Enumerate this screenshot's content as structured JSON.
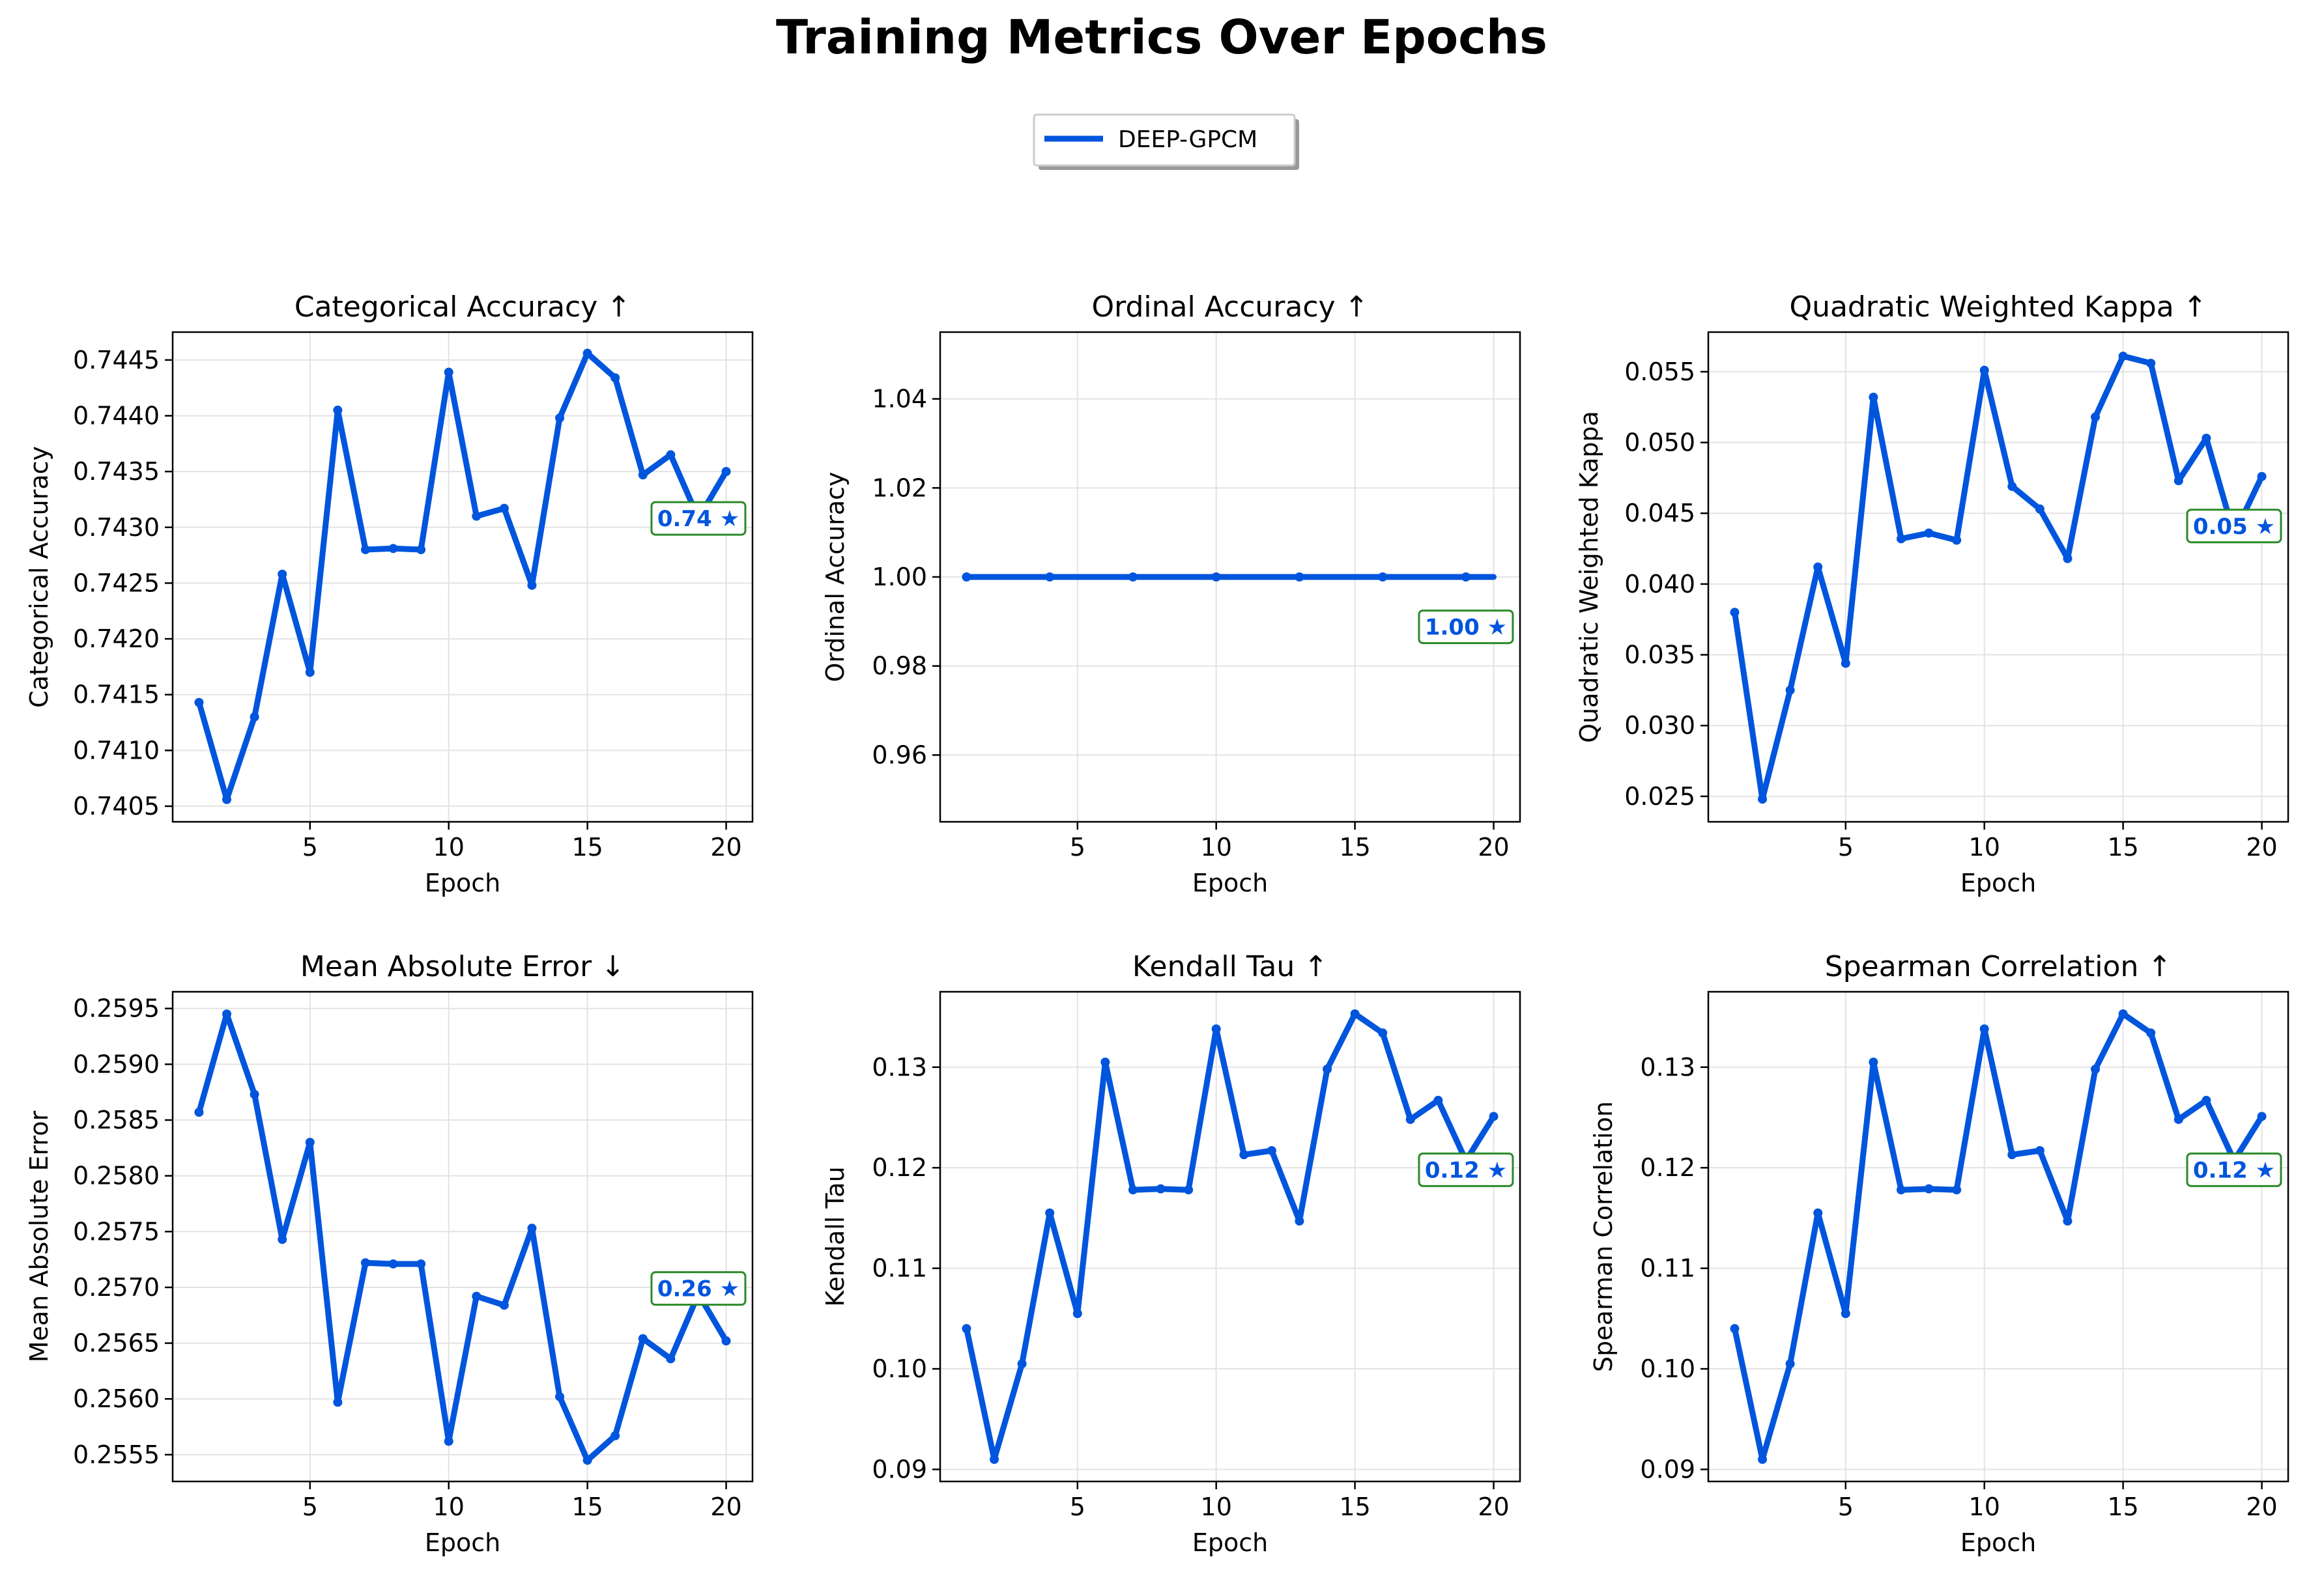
{
  "figure": {
    "title": "Training Metrics Over Epochs",
    "legend": {
      "entries": [
        {
          "label": "DEEP-GPCM",
          "color": "#0055dd"
        }
      ],
      "placement": "top-center"
    },
    "colors": {
      "series": "#0055dd",
      "best_box_edge": "#2a8a2a",
      "grid": "#e3e3e3"
    }
  },
  "chart_data": [
    {
      "type": "line",
      "title": "Categorical Accuracy ↑",
      "xlabel": "Epoch",
      "ylabel": "Categorical Accuracy",
      "x": [
        1,
        2,
        3,
        4,
        5,
        6,
        7,
        8,
        9,
        10,
        11,
        12,
        13,
        14,
        15,
        16,
        17,
        18,
        19,
        20
      ],
      "series": [
        {
          "name": "DEEP-GPCM",
          "values": [
            0.74143,
            0.74056,
            0.7413,
            0.74258,
            0.7417,
            0.74405,
            0.7428,
            0.74281,
            0.7428,
            0.74439,
            0.7431,
            0.74317,
            0.74248,
            0.74398,
            0.74456,
            0.74434,
            0.74347,
            0.74365,
            0.74308,
            0.7435
          ]
        }
      ],
      "xlim": [
        0.05,
        20.95
      ],
      "ylim": [
        0.74036,
        0.74475
      ],
      "xticks": [
        5,
        10,
        15,
        20
      ],
      "xtick_labels": [
        "5",
        "10",
        "15",
        "20"
      ],
      "yticks": [
        0.7405,
        0.741,
        0.7415,
        0.742,
        0.7425,
        0.743,
        0.7435,
        0.744,
        0.7445
      ],
      "ytick_labels": [
        "0.7405",
        "0.7410",
        "0.7415",
        "0.7420",
        "0.7425",
        "0.7430",
        "0.7435",
        "0.7440",
        "0.7445"
      ],
      "grid": true,
      "best": {
        "label": "0.74 ★",
        "x": 19.0,
        "y": 0.74308
      }
    },
    {
      "type": "line",
      "title": "Ordinal Accuracy ↑",
      "xlabel": "Epoch",
      "ylabel": "Ordinal Accuracy",
      "x": [
        1,
        2,
        3,
        4,
        5,
        6,
        7,
        8,
        9,
        10,
        11,
        12,
        13,
        14,
        15,
        16,
        17,
        18,
        19,
        20
      ],
      "series": [
        {
          "name": "DEEP-GPCM",
          "values": [
            1,
            1,
            1,
            1,
            1,
            1,
            1,
            1,
            1,
            1,
            1,
            1,
            1,
            1,
            1,
            1,
            1,
            1,
            1,
            1
          ]
        }
      ],
      "markers_at": [
        1,
        4,
        7,
        10,
        13,
        16,
        19
      ],
      "xlim": [
        0.05,
        20.95
      ],
      "ylim": [
        0.945,
        1.055
      ],
      "xticks": [
        5,
        10,
        15,
        20
      ],
      "xtick_labels": [
        "5",
        "10",
        "15",
        "20"
      ],
      "yticks": [
        0.96,
        0.98,
        1.0,
        1.02,
        1.04
      ],
      "ytick_labels": [
        "0.96",
        "0.98",
        "1.00",
        "1.02",
        "1.04"
      ],
      "grid": true,
      "best": {
        "label": "1.00 ★",
        "x": 19.0,
        "y": 0.9888
      }
    },
    {
      "type": "line",
      "title": "Quadratic Weighted Kappa ↑",
      "xlabel": "Epoch",
      "ylabel": "Quadratic Weighted Kappa",
      "x": [
        1,
        2,
        3,
        4,
        5,
        6,
        7,
        8,
        9,
        10,
        11,
        12,
        13,
        14,
        15,
        16,
        17,
        18,
        19,
        20
      ],
      "series": [
        {
          "name": "DEEP-GPCM",
          "values": [
            0.038,
            0.0248,
            0.0325,
            0.0412,
            0.0344,
            0.0532,
            0.0432,
            0.0436,
            0.0431,
            0.0551,
            0.0469,
            0.0453,
            0.0418,
            0.0518,
            0.0561,
            0.0556,
            0.0473,
            0.0503,
            0.0435,
            0.0476
          ]
        }
      ],
      "xlim": [
        0.05,
        20.95
      ],
      "ylim": [
        0.0232,
        0.0578
      ],
      "xticks": [
        5,
        10,
        15,
        20
      ],
      "xtick_labels": [
        "5",
        "10",
        "15",
        "20"
      ],
      "yticks": [
        0.025,
        0.03,
        0.035,
        0.04,
        0.045,
        0.05,
        0.055
      ],
      "ytick_labels": [
        "0.025",
        "0.030",
        "0.035",
        "0.040",
        "0.045",
        "0.050",
        "0.055"
      ],
      "grid": true,
      "best": {
        "label": "0.05 ★",
        "x": 19.0,
        "y": 0.0441
      }
    },
    {
      "type": "line",
      "title": "Mean Absolute Error ↓",
      "xlabel": "Epoch",
      "ylabel": "Mean Absolute Error",
      "x": [
        1,
        2,
        3,
        4,
        5,
        6,
        7,
        8,
        9,
        10,
        11,
        12,
        13,
        14,
        15,
        16,
        17,
        18,
        19,
        20
      ],
      "series": [
        {
          "name": "DEEP-GPCM",
          "values": [
            0.25857,
            0.25945,
            0.25873,
            0.25743,
            0.2583,
            0.25597,
            0.25722,
            0.25721,
            0.25721,
            0.25562,
            0.25692,
            0.25684,
            0.25753,
            0.25602,
            0.25545,
            0.25567,
            0.25654,
            0.25636,
            0.25694,
            0.25652
          ]
        }
      ],
      "xlim": [
        0.05,
        20.95
      ],
      "ylim": [
        0.25526,
        0.25965
      ],
      "xticks": [
        5,
        10,
        15,
        20
      ],
      "xtick_labels": [
        "5",
        "10",
        "15",
        "20"
      ],
      "yticks": [
        0.2555,
        0.256,
        0.2565,
        0.257,
        0.2575,
        0.258,
        0.2585,
        0.259,
        0.2595
      ],
      "ytick_labels": [
        "0.2555",
        "0.2560",
        "0.2565",
        "0.2570",
        "0.2575",
        "0.2580",
        "0.2585",
        "0.2590",
        "0.2595"
      ],
      "grid": true,
      "best": {
        "label": "0.26 ★",
        "x": 19.0,
        "y": 0.25699
      }
    },
    {
      "type": "line",
      "title": "Kendall Tau ↑",
      "xlabel": "Epoch",
      "ylabel": "Kendall Tau",
      "x": [
        1,
        2,
        3,
        4,
        5,
        6,
        7,
        8,
        9,
        10,
        11,
        12,
        13,
        14,
        15,
        16,
        17,
        18,
        19,
        20
      ],
      "series": [
        {
          "name": "DEEP-GPCM",
          "values": [
            0.104,
            0.091,
            0.1005,
            0.1155,
            0.1055,
            0.1305,
            0.1178,
            0.1179,
            0.1178,
            0.1338,
            0.1213,
            0.1217,
            0.1147,
            0.1298,
            0.1353,
            0.1334,
            0.1248,
            0.1267,
            0.1207,
            0.1251
          ]
        }
      ],
      "xlim": [
        0.05,
        20.95
      ],
      "ylim": [
        0.0888,
        0.1375
      ],
      "xticks": [
        5,
        10,
        15,
        20
      ],
      "xtick_labels": [
        "5",
        "10",
        "15",
        "20"
      ],
      "yticks": [
        0.09,
        0.1,
        0.11,
        0.12,
        0.13
      ],
      "ytick_labels": [
        "0.09",
        "0.10",
        "0.11",
        "0.12",
        "0.13"
      ],
      "grid": true,
      "best": {
        "label": "0.12 ★",
        "x": 19.0,
        "y": 0.1198
      }
    },
    {
      "type": "line",
      "title": "Spearman Correlation ↑",
      "xlabel": "Epoch",
      "ylabel": "Spearman Correlation",
      "x": [
        1,
        2,
        3,
        4,
        5,
        6,
        7,
        8,
        9,
        10,
        11,
        12,
        13,
        14,
        15,
        16,
        17,
        18,
        19,
        20
      ],
      "series": [
        {
          "name": "DEEP-GPCM",
          "values": [
            0.104,
            0.091,
            0.1005,
            0.1155,
            0.1055,
            0.1305,
            0.1178,
            0.1179,
            0.1178,
            0.1338,
            0.1213,
            0.1217,
            0.1147,
            0.1298,
            0.1353,
            0.1334,
            0.1248,
            0.1267,
            0.1207,
            0.1251
          ]
        }
      ],
      "xlim": [
        0.05,
        20.95
      ],
      "ylim": [
        0.0888,
        0.1375
      ],
      "xticks": [
        5,
        10,
        15,
        20
      ],
      "xtick_labels": [
        "5",
        "10",
        "15",
        "20"
      ],
      "yticks": [
        0.09,
        0.1,
        0.11,
        0.12,
        0.13
      ],
      "ytick_labels": [
        "0.09",
        "0.10",
        "0.11",
        "0.12",
        "0.13"
      ],
      "grid": true,
      "best": {
        "label": "0.12 ★",
        "x": 19.0,
        "y": 0.1198
      }
    }
  ]
}
